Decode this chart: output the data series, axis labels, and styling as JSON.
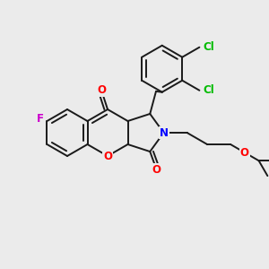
{
  "bg_color": "#ebebeb",
  "bond_color": "#1a1a1a",
  "bond_width": 1.4,
  "atom_colors": {
    "O": "#ff0000",
    "N": "#0000ff",
    "F": "#cc00cc",
    "Cl": "#00bb00",
    "C": "#1a1a1a"
  },
  "font_size": 8.5,
  "BL": 26
}
